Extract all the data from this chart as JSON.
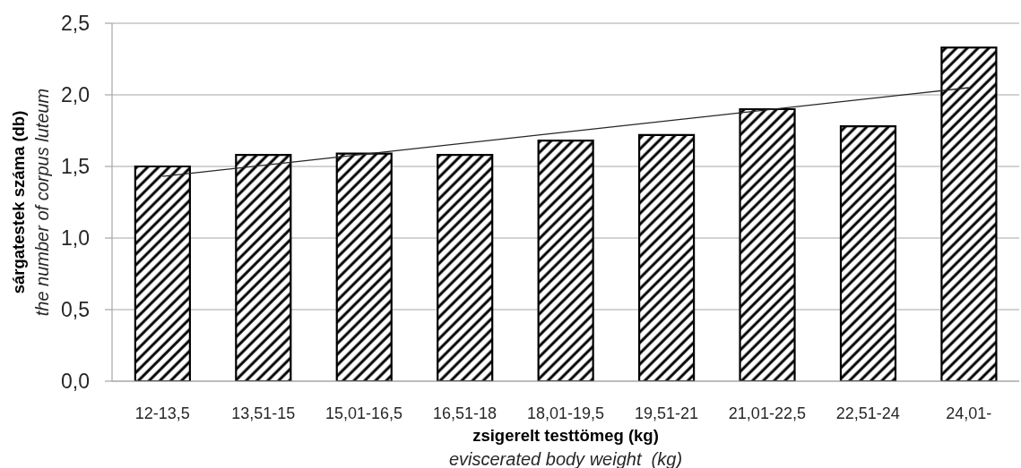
{
  "chart_data": {
    "type": "bar",
    "xlabel": "zsigerelt testtömeg (kg)\neviscerated body weight  (kg)",
    "ylabel": "sárgatestek száma (db)\nthe number of corpus luteum",
    "categories": [
      "12-13,5",
      "13,51-15",
      "15,01-16,5",
      "16,51-18",
      "18,01-19,5",
      "19,51-21",
      "21,01-22,5",
      "22,51-24",
      "24,01-"
    ],
    "series": [
      {
        "color": "#000000",
        "values": [
          1.5,
          1.58,
          1.59,
          1.58,
          1.68,
          1.72,
          1.9,
          1.78,
          2.33
        ]
      },
      {
        "type": "line",
        "color": "#262626",
        "x": [
          "12-13,5",
          "24,01-"
        ],
        "values": [
          1.43,
          2.05
        ]
      }
    ],
    "ylim": [
      0,
      2.5
    ],
    "yticks": [
      {
        "value": 0,
        "label": "0,0"
      },
      {
        "value": 0.5,
        "label": "0,5"
      },
      {
        "value": 1,
        "label": "1,0"
      },
      {
        "value": 1.5,
        "label": "1,5"
      },
      {
        "value": 2,
        "label": "2,0"
      },
      {
        "value": 2.5,
        "label": "2,5"
      }
    ],
    "grid": "y"
  }
}
